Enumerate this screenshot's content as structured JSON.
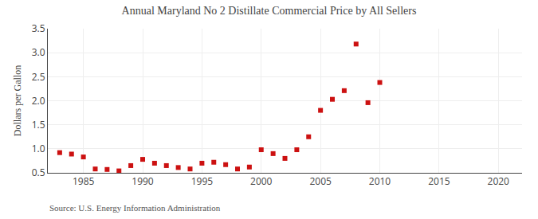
{
  "chart_data": {
    "type": "scatter",
    "title": "Annual Maryland No 2 Distillate Commercial Price by All Sellers",
    "ylabel": "Dollars per Gallon",
    "annotations": [
      "Source: U.S. Energy Information Administration"
    ],
    "x": [
      1983,
      1984,
      1985,
      1986,
      1987,
      1988,
      1989,
      1990,
      1991,
      1992,
      1993,
      1994,
      1995,
      1996,
      1997,
      1998,
      1999,
      2000,
      2001,
      2002,
      2003,
      2004,
      2005,
      2006,
      2007,
      2008,
      2009,
      2010
    ],
    "values": [
      0.92,
      0.89,
      0.83,
      0.58,
      0.57,
      0.54,
      0.65,
      0.78,
      0.7,
      0.65,
      0.61,
      0.58,
      0.7,
      0.72,
      0.67,
      0.58,
      0.62,
      0.98,
      0.9,
      0.8,
      0.98,
      1.25,
      1.8,
      2.03,
      2.21,
      3.18,
      1.96,
      2.38
    ],
    "color": "#cc1111",
    "marker": "square",
    "xlim": [
      1982,
      2022
    ],
    "ylim": [
      0.5,
      3.5
    ],
    "xticks": [
      1985,
      1990,
      1995,
      2000,
      2005,
      2010,
      2015,
      2020
    ],
    "yticks": [
      0.5,
      {
        "value": 1.0,
        "label": "1.0"
      },
      1.5,
      {
        "value": 2.0,
        "label": "2.0"
      },
      2.5,
      {
        "value": 3.0,
        "label": "3.0"
      },
      3.5
    ],
    "grid": true
  }
}
